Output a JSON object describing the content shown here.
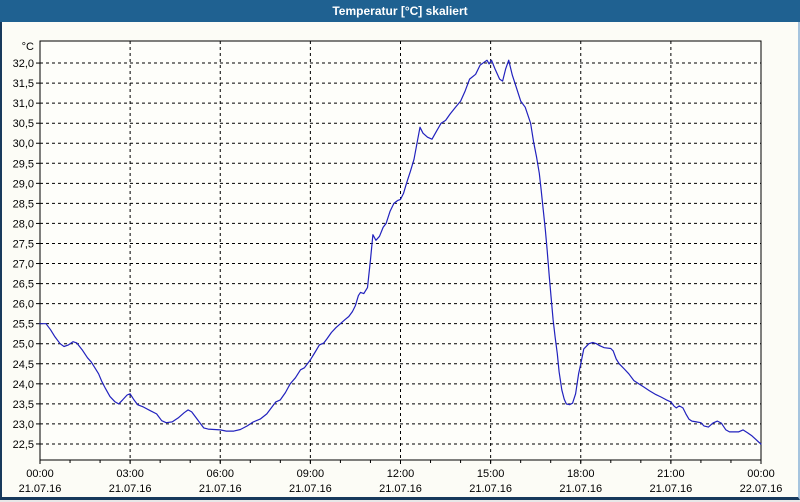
{
  "window": {
    "title": "Temperatur [°C] skaliert"
  },
  "colors": {
    "titlebar_bg": "#1F6191",
    "titlebar_text": "#FFFFFF",
    "window_bg": "#FCFCF6",
    "plot_bg": "#FEFEFA",
    "border_dark": "#17395C",
    "border_light": "#A6C4DE",
    "grid": "#000000",
    "axis": "#000000",
    "line": "#2222BE"
  },
  "chart_data": {
    "type": "line",
    "title": "Temperatur [°C] skaliert",
    "ylabel": "°C",
    "xlabel": "",
    "grid": "dashed",
    "legend": "none",
    "xlim": [
      0,
      24
    ],
    "ylim": [
      22.1,
      32.55
    ],
    "yticks": {
      "start": 22.5,
      "end": 32.0,
      "step": 0.5,
      "decimal_separator": ","
    },
    "xticks": [
      {
        "hour": 0,
        "time": "00:00",
        "date": "21.07.16"
      },
      {
        "hour": 3,
        "time": "03:00",
        "date": "21.07.16"
      },
      {
        "hour": 6,
        "time": "06:00",
        "date": "21.07.16"
      },
      {
        "hour": 9,
        "time": "09:00",
        "date": "21.07.16"
      },
      {
        "hour": 12,
        "time": "12:00",
        "date": "21.07.16"
      },
      {
        "hour": 15,
        "time": "15:00",
        "date": "21.07.16"
      },
      {
        "hour": 18,
        "time": "18:00",
        "date": "21.07.16"
      },
      {
        "hour": 21,
        "time": "21:00",
        "date": "21.07.16"
      },
      {
        "hour": 24,
        "time": "00:00",
        "date": "22.07.16"
      }
    ],
    "minor_x_tick_every_hours": 1,
    "series": [
      {
        "name": "Temperatur",
        "color": "#2222BE",
        "points": [
          [
            0.0,
            25.5
          ],
          [
            0.2,
            25.5
          ],
          [
            0.35,
            25.35
          ],
          [
            0.5,
            25.17
          ],
          [
            0.67,
            25.0
          ],
          [
            0.8,
            24.93
          ],
          [
            0.95,
            24.97
          ],
          [
            1.1,
            25.05
          ],
          [
            1.22,
            25.02
          ],
          [
            1.4,
            24.85
          ],
          [
            1.58,
            24.65
          ],
          [
            1.7,
            24.55
          ],
          [
            1.8,
            24.43
          ],
          [
            1.95,
            24.25
          ],
          [
            2.05,
            24.07
          ],
          [
            2.18,
            23.88
          ],
          [
            2.33,
            23.68
          ],
          [
            2.5,
            23.55
          ],
          [
            2.62,
            23.5
          ],
          [
            2.75,
            23.6
          ],
          [
            2.9,
            23.72
          ],
          [
            3.0,
            23.75
          ],
          [
            3.13,
            23.6
          ],
          [
            3.25,
            23.48
          ],
          [
            3.45,
            23.42
          ],
          [
            3.67,
            23.33
          ],
          [
            3.88,
            23.25
          ],
          [
            4.05,
            23.08
          ],
          [
            4.2,
            23.03
          ],
          [
            4.4,
            23.05
          ],
          [
            4.6,
            23.15
          ],
          [
            4.8,
            23.28
          ],
          [
            4.93,
            23.35
          ],
          [
            5.05,
            23.3
          ],
          [
            5.2,
            23.15
          ],
          [
            5.33,
            23.02
          ],
          [
            5.45,
            22.9
          ],
          [
            5.6,
            22.87
          ],
          [
            5.8,
            22.86
          ],
          [
            6.0,
            22.85
          ],
          [
            6.2,
            22.82
          ],
          [
            6.45,
            22.82
          ],
          [
            6.67,
            22.86
          ],
          [
            6.9,
            22.95
          ],
          [
            7.1,
            23.05
          ],
          [
            7.33,
            23.12
          ],
          [
            7.55,
            23.25
          ],
          [
            7.7,
            23.4
          ],
          [
            7.85,
            23.55
          ],
          [
            8.0,
            23.6
          ],
          [
            8.17,
            23.78
          ],
          [
            8.33,
            24.0
          ],
          [
            8.5,
            24.15
          ],
          [
            8.67,
            24.35
          ],
          [
            8.8,
            24.4
          ],
          [
            9.0,
            24.6
          ],
          [
            9.15,
            24.78
          ],
          [
            9.3,
            24.97
          ],
          [
            9.45,
            25.02
          ],
          [
            9.55,
            25.12
          ],
          [
            9.7,
            25.28
          ],
          [
            9.85,
            25.4
          ],
          [
            10.0,
            25.5
          ],
          [
            10.15,
            25.6
          ],
          [
            10.28,
            25.68
          ],
          [
            10.4,
            25.8
          ],
          [
            10.5,
            25.95
          ],
          [
            10.6,
            26.2
          ],
          [
            10.67,
            26.28
          ],
          [
            10.78,
            26.25
          ],
          [
            10.9,
            26.4
          ],
          [
            11.0,
            27.1
          ],
          [
            11.08,
            27.72
          ],
          [
            11.18,
            27.58
          ],
          [
            11.3,
            27.68
          ],
          [
            11.42,
            27.9
          ],
          [
            11.52,
            28.0
          ],
          [
            11.65,
            28.3
          ],
          [
            11.78,
            28.5
          ],
          [
            11.9,
            28.57
          ],
          [
            12.0,
            28.6
          ],
          [
            12.1,
            28.75
          ],
          [
            12.2,
            29.0
          ],
          [
            12.33,
            29.3
          ],
          [
            12.45,
            29.6
          ],
          [
            12.55,
            30.0
          ],
          [
            12.65,
            30.4
          ],
          [
            12.75,
            30.25
          ],
          [
            12.9,
            30.15
          ],
          [
            13.05,
            30.1
          ],
          [
            13.2,
            30.3
          ],
          [
            13.35,
            30.5
          ],
          [
            13.5,
            30.57
          ],
          [
            13.65,
            30.73
          ],
          [
            13.83,
            30.9
          ],
          [
            14.0,
            31.05
          ],
          [
            14.15,
            31.3
          ],
          [
            14.3,
            31.6
          ],
          [
            14.5,
            31.72
          ],
          [
            14.65,
            31.95
          ],
          [
            14.78,
            32.02
          ],
          [
            14.88,
            32.07
          ],
          [
            14.95,
            31.98
          ],
          [
            15.03,
            32.07
          ],
          [
            15.15,
            31.85
          ],
          [
            15.3,
            31.6
          ],
          [
            15.4,
            31.55
          ],
          [
            15.5,
            31.85
          ],
          [
            15.6,
            32.07
          ],
          [
            15.72,
            31.7
          ],
          [
            15.85,
            31.4
          ],
          [
            16.0,
            31.05
          ],
          [
            16.15,
            30.9
          ],
          [
            16.33,
            30.5
          ],
          [
            16.43,
            30.03
          ],
          [
            16.53,
            29.65
          ],
          [
            16.62,
            29.25
          ],
          [
            16.68,
            28.85
          ],
          [
            16.75,
            28.35
          ],
          [
            16.82,
            27.85
          ],
          [
            16.88,
            27.35
          ],
          [
            16.95,
            26.7
          ],
          [
            17.02,
            26.1
          ],
          [
            17.08,
            25.6
          ],
          [
            17.15,
            25.15
          ],
          [
            17.22,
            24.75
          ],
          [
            17.28,
            24.3
          ],
          [
            17.37,
            23.85
          ],
          [
            17.45,
            23.62
          ],
          [
            17.52,
            23.5
          ],
          [
            17.63,
            23.48
          ],
          [
            17.73,
            23.52
          ],
          [
            17.83,
            23.75
          ],
          [
            17.93,
            24.25
          ],
          [
            18.0,
            24.5
          ],
          [
            18.1,
            24.87
          ],
          [
            18.27,
            25.0
          ],
          [
            18.4,
            25.03
          ],
          [
            18.52,
            25.0
          ],
          [
            18.63,
            24.95
          ],
          [
            18.78,
            24.9
          ],
          [
            19.0,
            24.88
          ],
          [
            19.08,
            24.82
          ],
          [
            19.18,
            24.62
          ],
          [
            19.28,
            24.5
          ],
          [
            19.45,
            24.37
          ],
          [
            19.6,
            24.25
          ],
          [
            19.77,
            24.08
          ],
          [
            19.93,
            24.0
          ],
          [
            20.1,
            23.92
          ],
          [
            20.28,
            23.83
          ],
          [
            20.5,
            23.73
          ],
          [
            20.67,
            23.67
          ],
          [
            20.85,
            23.6
          ],
          [
            21.0,
            23.55
          ],
          [
            21.1,
            23.45
          ],
          [
            21.18,
            23.4
          ],
          [
            21.28,
            23.45
          ],
          [
            21.4,
            23.4
          ],
          [
            21.5,
            23.25
          ],
          [
            21.6,
            23.12
          ],
          [
            21.7,
            23.07
          ],
          [
            21.85,
            23.05
          ],
          [
            22.0,
            23.03
          ],
          [
            22.1,
            22.95
          ],
          [
            22.25,
            22.92
          ],
          [
            22.4,
            23.02
          ],
          [
            22.55,
            23.07
          ],
          [
            22.68,
            23.02
          ],
          [
            22.83,
            22.85
          ],
          [
            22.95,
            22.8
          ],
          [
            23.1,
            22.8
          ],
          [
            23.25,
            22.8
          ],
          [
            23.4,
            22.85
          ],
          [
            23.55,
            22.78
          ],
          [
            23.7,
            22.7
          ],
          [
            23.82,
            22.62
          ],
          [
            23.92,
            22.55
          ],
          [
            24.0,
            22.5
          ]
        ]
      }
    ]
  }
}
